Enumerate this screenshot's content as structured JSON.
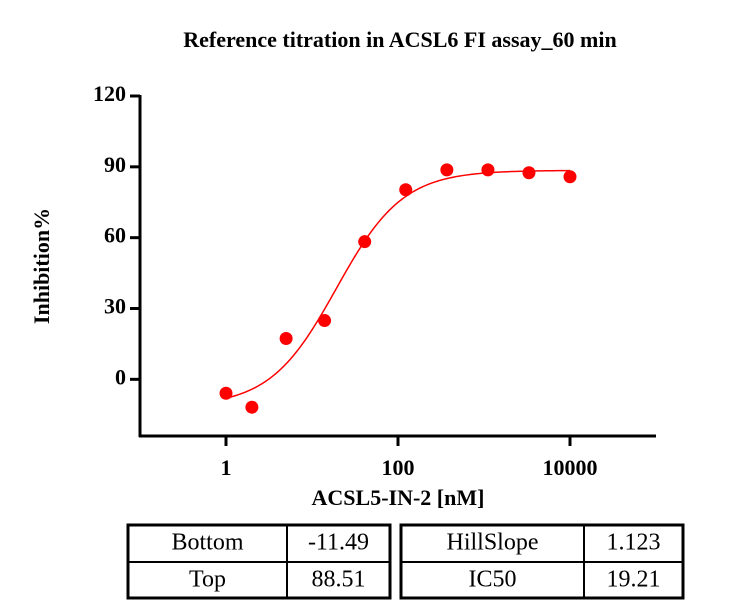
{
  "chart_data": {
    "type": "scatter",
    "title": "Reference titration in ACSL6 FI assay_60 min",
    "x_label": "ACSL5-IN-2 [nM]",
    "y_label": "Inhibition%",
    "x": [
      1,
      2,
      5,
      14,
      41,
      123,
      370,
      1111,
      3333,
      10000
    ],
    "values": [
      -5.9,
      -11.8,
      17.3,
      24.9,
      58.3,
      80.3,
      88.7,
      88.7,
      87.5,
      85.8
    ],
    "color": "#ff0000",
    "x_log": true,
    "xlim": [
      0.1,
      100000
    ],
    "xticks": [
      1,
      100,
      10000
    ],
    "ylim": [
      -24,
      120
    ],
    "yticks": [
      0,
      30,
      60,
      90,
      120
    ],
    "parameters": [
      {
        "label": "Bottom",
        "value": -11.49
      },
      {
        "label": "Top",
        "value": 88.51
      },
      {
        "label": "HillSlope",
        "value": 1.123
      },
      {
        "label": "IC50",
        "value": 19.21
      }
    ]
  }
}
